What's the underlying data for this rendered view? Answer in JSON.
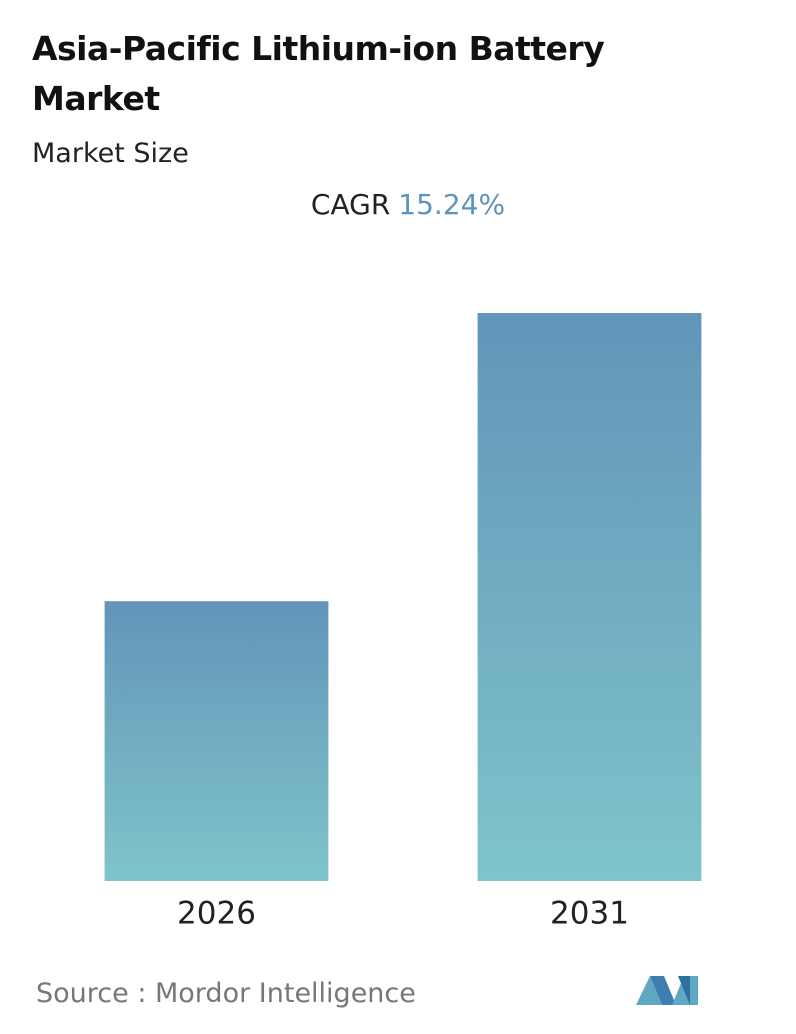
{
  "chart_data": {
    "type": "bar",
    "title": "Asia-Pacific Lithium-ion Battery Market",
    "subtitle": "Market Size",
    "cagr_label": "CAGR",
    "cagr": "15.24%",
    "categories": [
      "2026",
      "2031"
    ],
    "values": [
      1,
      2.03
    ],
    "ylim": [
      0,
      2.03
    ],
    "color_top": "#6295b9",
    "color_bottom": "#7fc4ca",
    "source": "Source :  Mordor Intelligence"
  }
}
